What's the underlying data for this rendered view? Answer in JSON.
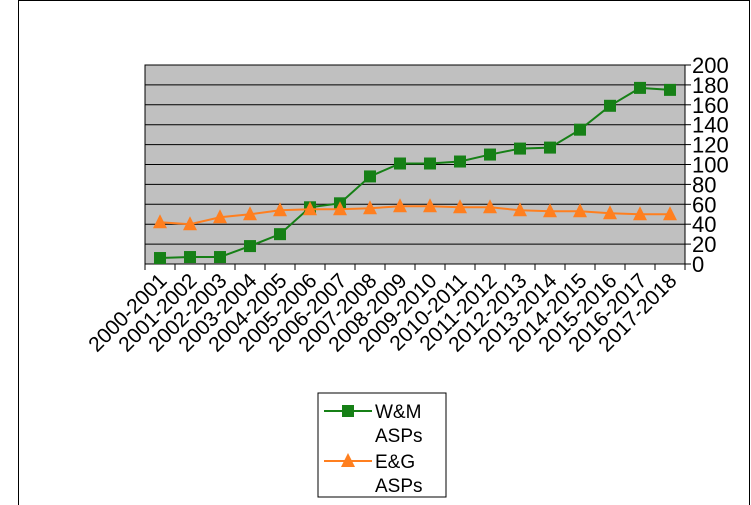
{
  "chart_data": {
    "type": "line",
    "categories": [
      "2000-2001",
      "2001-2002",
      "2002-2003",
      "2003-2004",
      "2004-2005",
      "2005-2006",
      "2006-2007",
      "2007-2008",
      "2008-2009",
      "2009-2010",
      "2010-2011",
      "2011-2012",
      "2012-2013",
      "2013-2014",
      "2014-2015",
      "2015-2016",
      "2016-2017",
      "2017-2018"
    ],
    "series": [
      {
        "name": "W&M ASPs",
        "name_lines": [
          "W&M",
          "ASPs"
        ],
        "color": "#168016",
        "marker": "square",
        "values": [
          6,
          7,
          7,
          18,
          30,
          57,
          61,
          88,
          101,
          101,
          103,
          110,
          116,
          117,
          135,
          159,
          177,
          175
        ]
      },
      {
        "name": "E&G ASPs",
        "name_lines": [
          "E&G",
          "ASPs"
        ],
        "color": "#ff7f1f",
        "marker": "triangle",
        "values": [
          42,
          40,
          47,
          50,
          54,
          55,
          55,
          56,
          58,
          58,
          57,
          57,
          54,
          53,
          53,
          51,
          50,
          50
        ]
      }
    ],
    "yticks": [
      0,
      20,
      40,
      60,
      80,
      100,
      120,
      140,
      160,
      180,
      200
    ],
    "ylim": [
      0,
      200
    ],
    "plot_background": "#c0c0c0",
    "grid": true,
    "y_axis_side": "right",
    "legend_position": "bottom"
  }
}
